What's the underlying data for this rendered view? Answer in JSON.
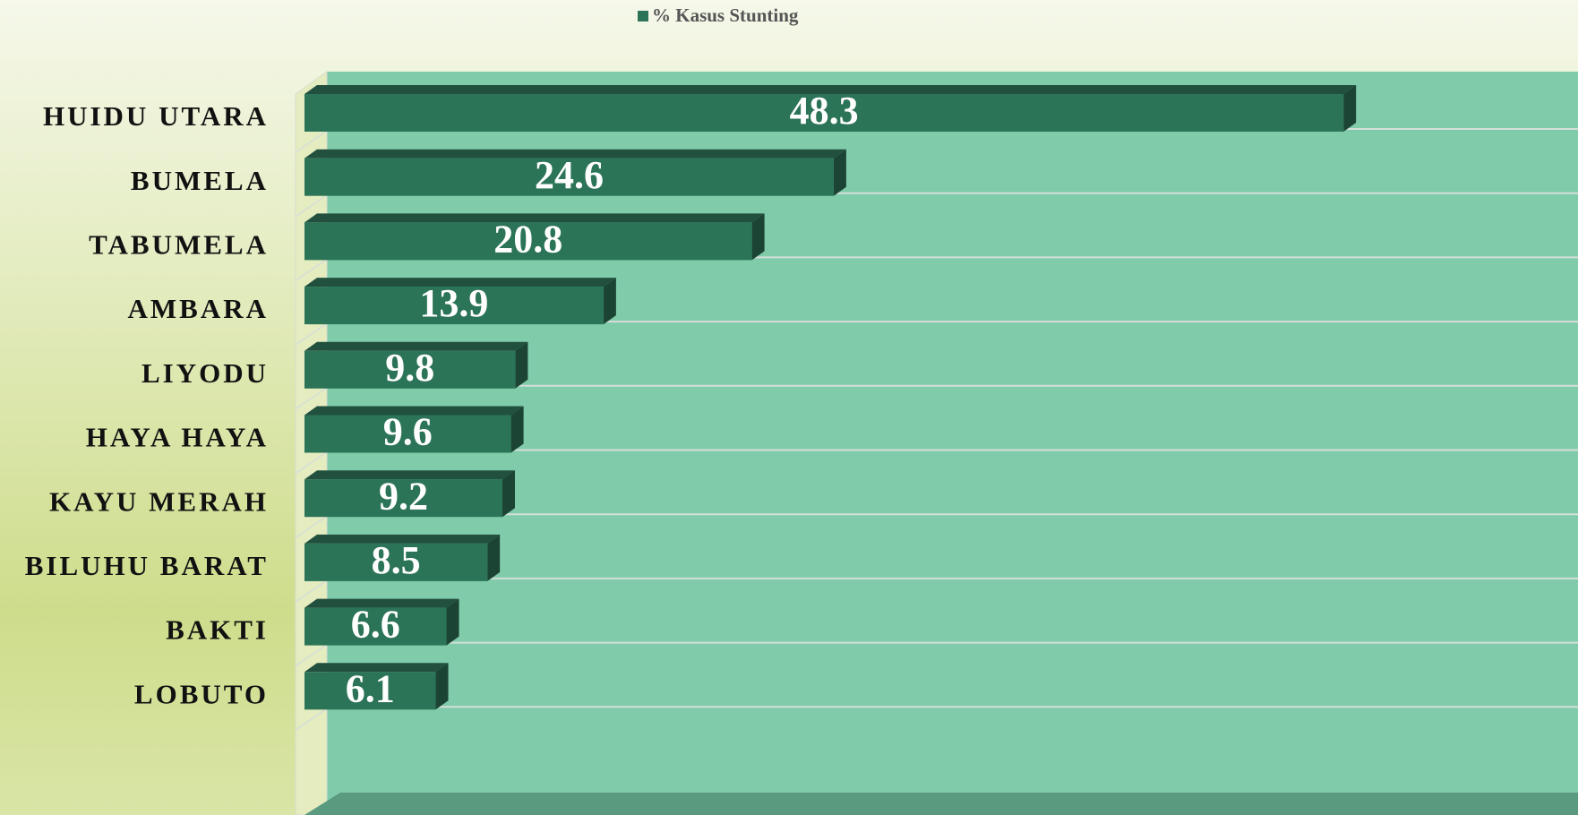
{
  "chart_data": {
    "type": "bar",
    "orientation": "horizontal",
    "legend": "top",
    "xlim": [
      0,
      51
    ],
    "series": [
      {
        "name": "% Kasus Stunting",
        "color": "#2b7457",
        "values": [
          48.3,
          24.6,
          20.8,
          13.9,
          9.8,
          9.6,
          9.2,
          8.5,
          6.6,
          6.1
        ]
      }
    ],
    "categories": [
      "HUIDU UTARA",
      "BUMELA",
      "TABUMELA",
      "AMBARA",
      "LIYODU",
      "HAYA HAYA",
      "KAYU MERAH",
      "BILUHU BARAT",
      "BAKTI",
      "LOBUTO"
    ]
  }
}
